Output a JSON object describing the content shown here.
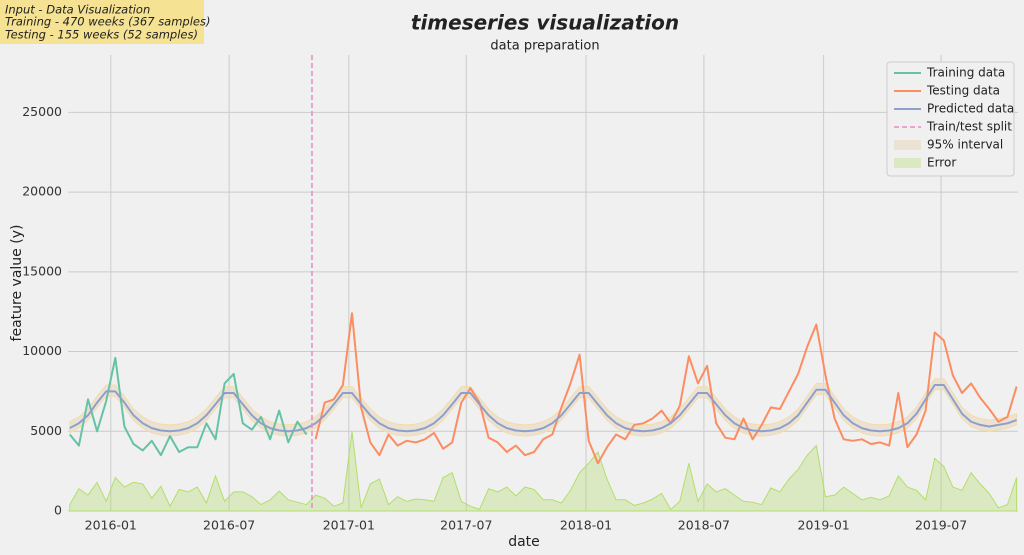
{
  "chart_data": {
    "type": "timeseries",
    "title": "timeseries visualization",
    "subtitle": "data preparation",
    "xlabel": "date",
    "ylabel": "feature value (y)",
    "info_box": [
      "Input - Data Visualization",
      "Training - 470 weeks (367 samples)",
      "Testing - 155 weeks (52 samples)"
    ],
    "info_box_color": "#f5e293",
    "grid": true,
    "legend_loc": "upper right",
    "xlim": [
      -9.4,
      199.3
    ],
    "ylim": [
      0,
      28600
    ],
    "xticks": [
      {
        "value": 0,
        "label": "2016-01"
      },
      {
        "value": 26,
        "label": "2016-07"
      },
      {
        "value": 52.3,
        "label": "2017-01"
      },
      {
        "value": 78.1,
        "label": "2017-07"
      },
      {
        "value": 104.4,
        "label": "2018-01"
      },
      {
        "value": 130.3,
        "label": "2018-07"
      },
      {
        "value": 156.6,
        "label": "2019-01"
      },
      {
        "value": 182.4,
        "label": "2019-07"
      }
    ],
    "yticks": [
      0,
      5000,
      10000,
      15000,
      20000,
      25000
    ],
    "x": [
      -9,
      -7,
      -5,
      -3,
      -1,
      1,
      3,
      5,
      7,
      9,
      11,
      13,
      15,
      17,
      19,
      21,
      23,
      25,
      27,
      29,
      31,
      33,
      35,
      37,
      39,
      41,
      43,
      45,
      47,
      49,
      51,
      53,
      55,
      57,
      59,
      61,
      63,
      65,
      67,
      69,
      71,
      73,
      75,
      77,
      79,
      81,
      83,
      85,
      87,
      89,
      91,
      93,
      95,
      97,
      99,
      101,
      103,
      105,
      107,
      109,
      111,
      113,
      115,
      117,
      119,
      121,
      123,
      125,
      127,
      129,
      131,
      133,
      135,
      137,
      139,
      141,
      143,
      145,
      147,
      149,
      151,
      153,
      155,
      157,
      159,
      161,
      163,
      165,
      167,
      169,
      171,
      173,
      175,
      177,
      179,
      181,
      183,
      185,
      187,
      189,
      191,
      193,
      195,
      197,
      199
    ],
    "series": [
      {
        "name": "Training data",
        "kind": "line",
        "color": "#66c2a5",
        "x": [
          -9,
          -7,
          -5,
          -3,
          -1,
          1,
          3,
          5,
          7,
          9,
          11,
          13,
          15,
          17,
          19,
          21,
          23,
          25,
          27,
          29,
          31,
          33,
          35,
          37,
          39,
          41,
          43
        ],
        "values": [
          4800,
          4100,
          7000,
          5000,
          6900,
          9600,
          5300,
          4200,
          3800,
          4400,
          3500,
          4700,
          3700,
          4000,
          4000,
          5500,
          4500,
          8000,
          8600,
          5500,
          5100,
          5900,
          4500,
          6300,
          4300,
          5600,
          4800
        ]
      },
      {
        "name": "Testing data",
        "kind": "line",
        "color": "#fc8d62",
        "x": [
          45,
          47,
          49,
          51,
          53,
          55,
          57,
          59,
          61,
          63,
          65,
          67,
          69,
          71,
          73,
          75,
          77,
          79,
          81,
          83,
          85,
          87,
          89,
          91,
          93,
          95,
          97,
          99,
          101,
          103,
          105,
          107,
          109,
          111,
          113,
          115,
          117,
          119,
          121,
          123,
          125,
          127,
          129,
          131,
          133,
          135,
          137,
          139,
          141,
          143,
          145,
          147,
          149,
          151,
          153,
          155,
          157,
          159,
          161,
          163,
          165,
          167,
          169,
          171,
          173,
          175,
          177,
          179,
          181,
          183,
          185,
          187,
          189,
          191,
          193,
          195,
          197,
          199
        ],
        "values": [
          4500,
          6800,
          7000,
          7900,
          12400,
          6500,
          4300,
          3500,
          4800,
          4100,
          4400,
          4300,
          4500,
          4900,
          3900,
          4300,
          6800,
          7700,
          6800,
          4600,
          4300,
          3700,
          4100,
          3500,
          3700,
          4500,
          4800,
          6500,
          8000,
          9800,
          4400,
          3000,
          4000,
          4800,
          4500,
          5400,
          5500,
          5800,
          6300,
          5500,
          6600,
          9700,
          8000,
          9100,
          5500,
          4600,
          4500,
          5800,
          4500,
          5400,
          6500,
          6400,
          7500,
          8600,
          10300,
          11700,
          8500,
          5800,
          4500,
          4400,
          4500,
          4200,
          4300,
          4100,
          7400,
          4000,
          4800,
          6300,
          11200,
          10700,
          8500,
          7400,
          8000,
          7100,
          6400,
          5600,
          5900,
          7800
        ]
      },
      {
        "name": "Predicted data",
        "kind": "line",
        "color": "#8da0cb",
        "values": [
          5200,
          5500,
          6000,
          6800,
          7500,
          7500,
          6800,
          6000,
          5500,
          5200,
          5050,
          5000,
          5050,
          5200,
          5500,
          6000,
          6700,
          7400,
          7400,
          6700,
          6000,
          5500,
          5200,
          5050,
          5000,
          5050,
          5200,
          5500,
          6000,
          6700,
          7400,
          7400,
          6700,
          6000,
          5500,
          5200,
          5050,
          5000,
          5050,
          5200,
          5500,
          6000,
          6700,
          7400,
          7400,
          6700,
          6000,
          5500,
          5200,
          5050,
          5000,
          5050,
          5200,
          5500,
          6000,
          6700,
          7400,
          7400,
          6700,
          6000,
          5500,
          5200,
          5050,
          5000,
          5050,
          5200,
          5500,
          6000,
          6700,
          7400,
          7400,
          6700,
          6000,
          5500,
          5200,
          5050,
          5000,
          5050,
          5200,
          5500,
          6000,
          6800,
          7600,
          7600,
          6800,
          6000,
          5500,
          5200,
          5050,
          5000,
          5050,
          5200,
          5500,
          6100,
          7000,
          7900,
          7900,
          7000,
          6100,
          5600,
          5400,
          5300,
          5400,
          5500,
          5700
        ]
      },
      {
        "name": "Train/test split",
        "kind": "vline",
        "color": "#e78ac3",
        "x": 44.2
      },
      {
        "name": "95% interval",
        "kind": "band",
        "color": "#eadcc8",
        "lower": [
          4900,
          5200,
          5700,
          6500,
          7200,
          7200,
          6500,
          5700,
          5200,
          4900,
          4750,
          4700,
          4750,
          4900,
          5200,
          5700,
          6400,
          7100,
          7100,
          6400,
          5700,
          5200,
          4900,
          4750,
          4700,
          4750,
          4900,
          5200,
          5700,
          6400,
          7100,
          7100,
          6400,
          5700,
          5200,
          4900,
          4750,
          4700,
          4750,
          4900,
          5200,
          5700,
          6400,
          7100,
          7100,
          6400,
          5700,
          5200,
          4900,
          4750,
          4700,
          4750,
          4900,
          5200,
          5700,
          6400,
          7100,
          7100,
          6400,
          5700,
          5200,
          4900,
          4750,
          4700,
          4750,
          4900,
          5200,
          5700,
          6400,
          7100,
          7100,
          6400,
          5700,
          5200,
          4900,
          4750,
          4700,
          4750,
          4900,
          5200,
          5700,
          6500,
          7300,
          7300,
          6500,
          5700,
          5200,
          4900,
          4750,
          4700,
          4750,
          4900,
          5200,
          5800,
          6700,
          7600,
          7600,
          6700,
          5800,
          5300,
          5100,
          5000,
          5100,
          5200,
          5400
        ],
        "upper": [
          5600,
          5900,
          6400,
          7200,
          7900,
          7900,
          7200,
          6400,
          5900,
          5600,
          5450,
          5400,
          5450,
          5600,
          5900,
          6400,
          7100,
          7800,
          7800,
          7100,
          6400,
          5900,
          5600,
          5450,
          5400,
          5450,
          5600,
          5900,
          6400,
          7100,
          7800,
          7800,
          7100,
          6400,
          5900,
          5600,
          5450,
          5400,
          5450,
          5600,
          5900,
          6400,
          7100,
          7800,
          7800,
          7100,
          6400,
          5900,
          5600,
          5450,
          5400,
          5450,
          5600,
          5900,
          6400,
          7100,
          7800,
          7800,
          7100,
          6400,
          5900,
          5600,
          5450,
          5400,
          5450,
          5600,
          5900,
          6400,
          7100,
          7800,
          7800,
          7100,
          6400,
          5900,
          5600,
          5450,
          5400,
          5450,
          5600,
          5900,
          6400,
          7200,
          8000,
          8000,
          7200,
          6400,
          5900,
          5600,
          5450,
          5400,
          5450,
          5600,
          5900,
          6500,
          7400,
          8300,
          8300,
          7400,
          6500,
          6000,
          5800,
          5700,
          5800,
          5900,
          6100
        ]
      },
      {
        "name": "Error",
        "kind": "area",
        "color": "#b3de69",
        "values": [
          400,
          1400,
          1000,
          1800,
          600,
          2100,
          1500,
          1800,
          1700,
          800,
          1550,
          300,
          1350,
          1200,
          1500,
          500,
          2200,
          600,
          1200,
          1200,
          900,
          400,
          700,
          1250,
          700,
          550,
          400,
          1000,
          800,
          300,
          500,
          5000,
          200,
          1700,
          2000,
          400,
          900,
          600,
          750,
          700,
          600,
          2100,
          2400,
          600,
          300,
          100,
          1400,
          1200,
          1500,
          950,
          1500,
          1350,
          700,
          700,
          500,
          1300,
          2400,
          3000,
          3700,
          2000,
          700,
          700,
          350,
          500,
          750,
          1100,
          100,
          600,
          3000,
          600,
          1700,
          1200,
          1400,
          1000,
          600,
          550,
          400,
          1450,
          1200,
          2000,
          2600,
          3500,
          4100,
          900,
          1000,
          1500,
          1100,
          700,
          850,
          700,
          950,
          2200,
          1500,
          1300,
          700,
          3300,
          2800,
          1500,
          1300,
          2400,
          1700,
          1100,
          200,
          400,
          2100
        ]
      }
    ]
  }
}
